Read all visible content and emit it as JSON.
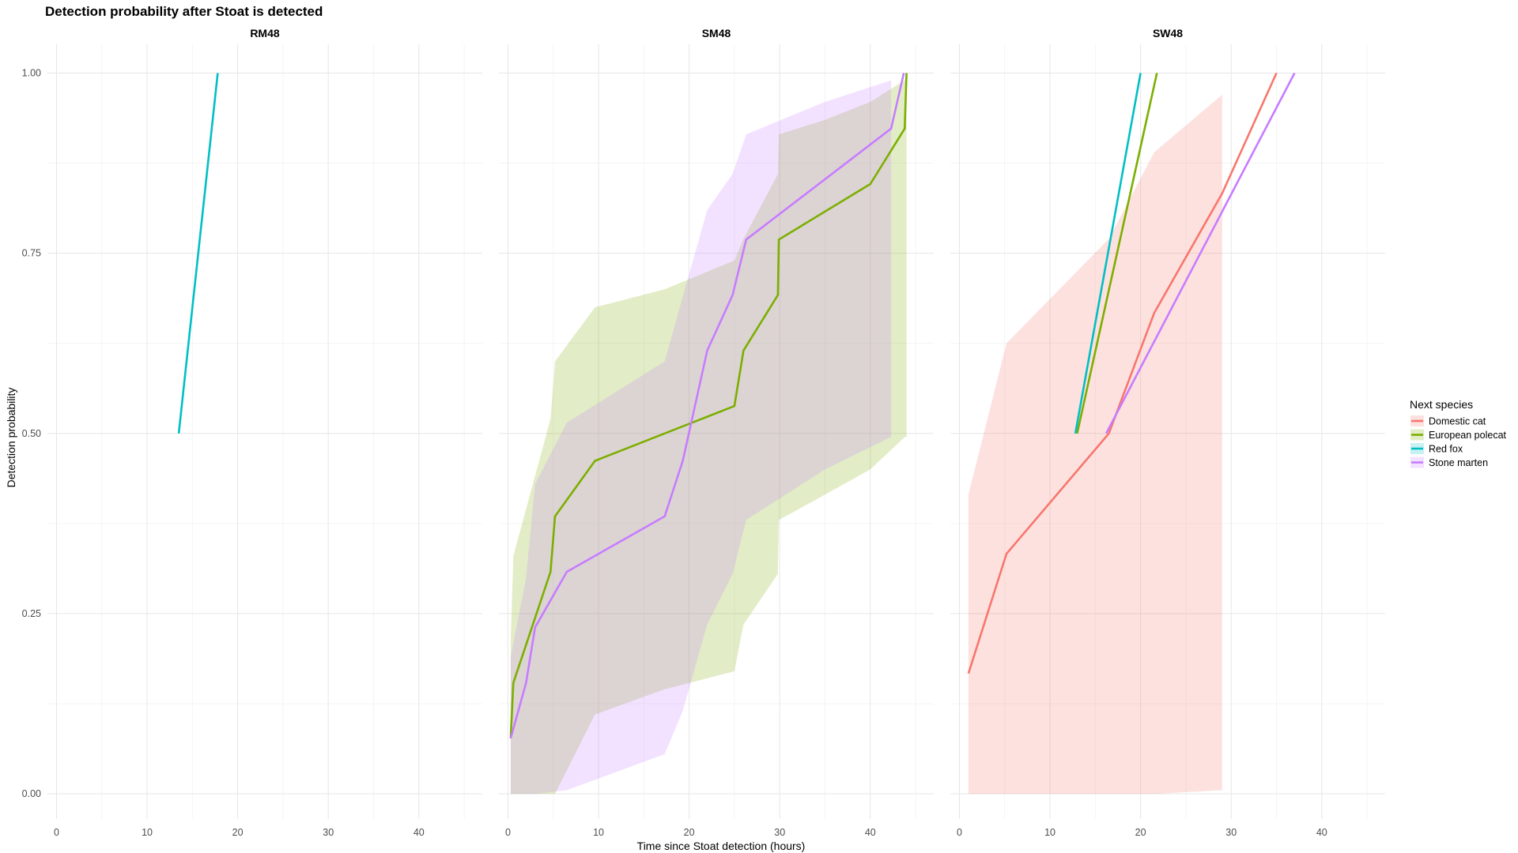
{
  "chart_data": {
    "type": "line",
    "title": "Detection probability after Stoat is detected",
    "xlabel": "Time since Stoat detection (hours)",
    "ylabel": "Detection probability",
    "xlim": [
      -1,
      47
    ],
    "ylim": [
      -0.035,
      1.04
    ],
    "x_ticks": [
      0,
      10,
      20,
      30,
      40
    ],
    "y_ticks": [
      0.0,
      0.25,
      0.5,
      0.75,
      1.0
    ],
    "x_tick_labels": [
      "0",
      "10",
      "20",
      "30",
      "40"
    ],
    "y_tick_labels": [
      "0.00",
      "0.25",
      "0.50",
      "0.75",
      "1.00"
    ],
    "grid": true,
    "legend": {
      "title": "Next species",
      "position": "right",
      "entries": [
        {
          "name": "Domestic cat",
          "color": "#F8766D"
        },
        {
          "name": "European polecat",
          "color": "#7CAE00"
        },
        {
          "name": "Red fox",
          "color": "#00BFC4"
        },
        {
          "name": "Stone marten",
          "color": "#C77CFF"
        }
      ]
    },
    "panels": [
      {
        "name": "RM48",
        "series": [
          {
            "name": "Red fox",
            "color": "#00BFC4",
            "x": [
              13.5,
              17.8
            ],
            "y": [
              0.5,
              1.0
            ]
          }
        ],
        "ribbons": []
      },
      {
        "name": "SM48",
        "series": [
          {
            "name": "European polecat",
            "color": "#7CAE00",
            "x": [
              0.3,
              0.6,
              4.7,
              5.2,
              9.6,
              25.0,
              26.0,
              29.8,
              29.9,
              40.0,
              43.8,
              44.0
            ],
            "y": [
              0.077,
              0.154,
              0.308,
              0.385,
              0.462,
              0.538,
              0.615,
              0.692,
              0.769,
              0.846,
              0.923,
              1.0
            ]
          },
          {
            "name": "Stone marten",
            "color": "#C77CFF",
            "x": [
              0.3,
              2.0,
              3.0,
              6.5,
              17.3,
              19.3,
              22.0,
              24.8,
              26.3,
              42.3,
              43.7
            ],
            "y": [
              0.077,
              0.154,
              0.231,
              0.308,
              0.385,
              0.462,
              0.615,
              0.692,
              0.769,
              0.923,
              1.0
            ]
          }
        ],
        "ribbons": [
          {
            "name": "European polecat",
            "color": "#7CAE00",
            "x": [
              0.3,
              0.6,
              4.7,
              5.2,
              9.6,
              17.3,
              25.0,
              26.0,
              29.8,
              29.9,
              35.0,
              40.0,
              43.8,
              44.0
            ],
            "upper": [
              0.21,
              0.33,
              0.52,
              0.6,
              0.675,
              0.7,
              0.74,
              0.77,
              0.86,
              0.915,
              0.935,
              0.96,
              0.99,
              1.0
            ],
            "lower": [
              0.0,
              0.0,
              0.0,
              0.0,
              0.11,
              0.145,
              0.17,
              0.235,
              0.305,
              0.38,
              0.415,
              0.45,
              0.495,
              0.495
            ]
          },
          {
            "name": "Stone marten",
            "color": "#C77CFF",
            "x": [
              0.3,
              2.0,
              3.0,
              6.5,
              17.3,
              19.3,
              22.0,
              24.8,
              26.3,
              35.0,
              42.3
            ],
            "upper": [
              0.19,
              0.3,
              0.43,
              0.515,
              0.6,
              0.69,
              0.81,
              0.86,
              0.915,
              0.96,
              0.99
            ],
            "lower": [
              0.0,
              0.0,
              0.0,
              0.005,
              0.055,
              0.115,
              0.235,
              0.305,
              0.38,
              0.45,
              0.495
            ]
          }
        ]
      },
      {
        "name": "SW48",
        "series": [
          {
            "name": "Domestic cat",
            "color": "#F8766D",
            "x": [
              1.0,
              5.2,
              16.5,
              21.5,
              29.0,
              35.0
            ],
            "y": [
              0.167,
              0.333,
              0.5,
              0.667,
              0.833,
              1.0
            ]
          },
          {
            "name": "European polecat",
            "color": "#7CAE00",
            "x": [
              13.0,
              21.8
            ],
            "y": [
              0.5,
              1.0
            ]
          },
          {
            "name": "Red fox",
            "color": "#00BFC4",
            "x": [
              12.8,
              20.0
            ],
            "y": [
              0.5,
              1.0
            ]
          },
          {
            "name": "Stone marten",
            "color": "#C77CFF",
            "x": [
              16.2,
              37.0
            ],
            "y": [
              0.5,
              1.0
            ]
          }
        ],
        "ribbons": [
          {
            "name": "Domestic cat",
            "color": "#F8766D",
            "x": [
              1.0,
              5.2,
              16.5,
              21.5,
              29.0
            ],
            "upper": [
              0.415,
              0.625,
              0.77,
              0.89,
              0.97
            ],
            "lower": [
              0.0,
              0.0,
              0.0,
              0.0,
              0.005
            ]
          }
        ]
      }
    ]
  }
}
